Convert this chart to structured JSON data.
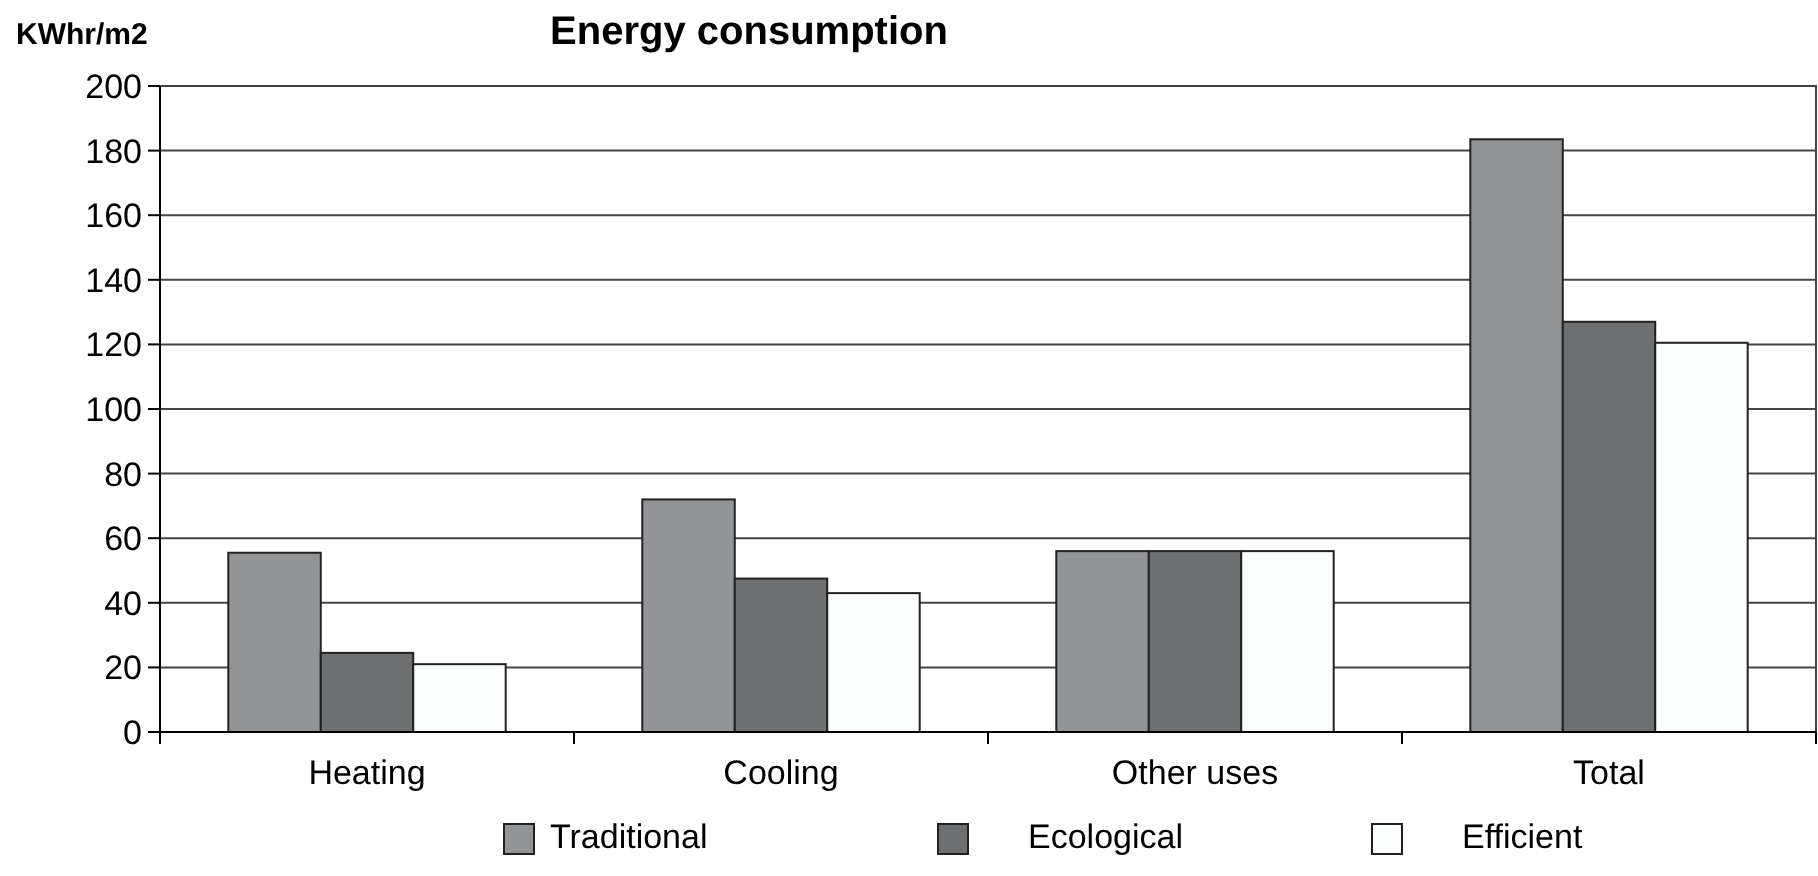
{
  "chart_data": {
    "type": "bar",
    "title": "Energy consumption",
    "ylabel": "KWhr/m2",
    "categories": [
      "Heating",
      "Cooling",
      "Other uses",
      "Total"
    ],
    "series": [
      {
        "name": "Traditional",
        "color": "#939496",
        "values": [
          55.5,
          72,
          56,
          183.5
        ]
      },
      {
        "name": "Ecological",
        "color": "#6e6f71",
        "values": [
          24.5,
          47.5,
          56,
          127
        ]
      },
      {
        "name": "Efficient",
        "color": "#fcfdfd",
        "values": [
          21,
          43,
          56,
          120.5
        ]
      }
    ],
    "ylim": [
      0,
      200
    ],
    "yticks": [
      0,
      20,
      40,
      60,
      80,
      100,
      120,
      140,
      160,
      180,
      200
    ],
    "grid": "y",
    "legend": "bottom"
  }
}
